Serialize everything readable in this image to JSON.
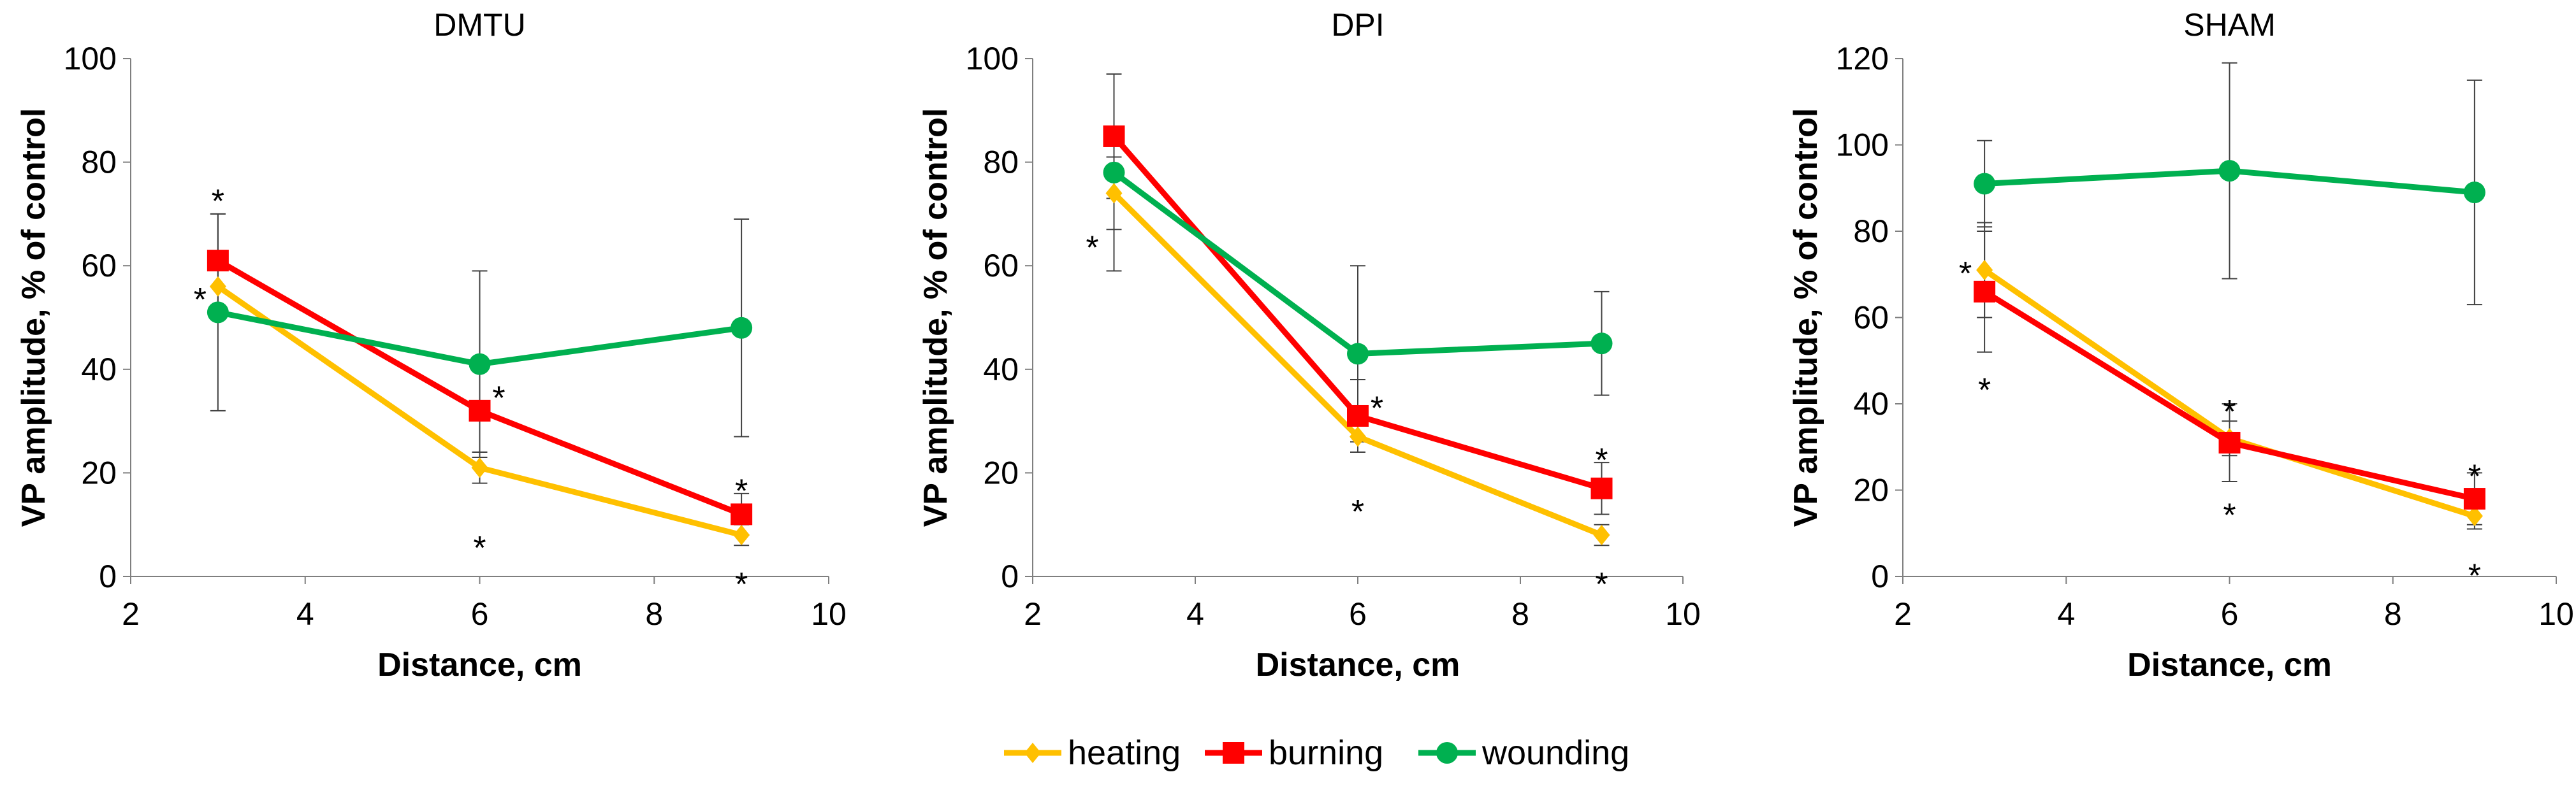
{
  "chart_data": [
    {
      "type": "line",
      "title": "DMTU",
      "xlabel": "Distance, cm",
      "ylabel": "VP amplitude, % of control",
      "xlim": [
        2,
        10
      ],
      "ylim": [
        0,
        100
      ],
      "x_ticks": [
        "2",
        "4",
        "6",
        "8",
        "10"
      ],
      "y_ticks": [
        "0",
        "20",
        "40",
        "60",
        "80",
        "100"
      ],
      "x": [
        3,
        6,
        9
      ],
      "series": [
        {
          "name": "heating",
          "color": "#FFC000",
          "marker": "diamond",
          "values": [
            56,
            21,
            8
          ],
          "errors": [
            6,
            3,
            2
          ]
        },
        {
          "name": "burning",
          "color": "#FF0000",
          "marker": "square",
          "values": [
            61,
            32,
            12
          ],
          "errors": [
            9,
            8,
            4
          ]
        },
        {
          "name": "wounding",
          "color": "#00B050",
          "marker": "circle",
          "values": [
            51,
            41,
            48
          ],
          "errors": [
            19,
            18,
            21
          ]
        }
      ],
      "annotations": [
        {
          "text": "*",
          "x": 3,
          "y": 74,
          "dx": 0
        },
        {
          "text": "*",
          "x": 3,
          "y": 55,
          "dx": -28
        },
        {
          "text": "*",
          "x": 6,
          "y": 36,
          "dx": 30
        },
        {
          "text": "*",
          "x": 6,
          "y": 7,
          "dx": 0
        },
        {
          "text": "*",
          "x": 9,
          "y": 18,
          "dx": 0
        },
        {
          "text": "*",
          "x": 9,
          "y": 0,
          "dx": 0
        }
      ]
    },
    {
      "type": "line",
      "title": "DPI",
      "xlabel": "Distance, cm",
      "ylabel": "VP amplitude, % of control",
      "xlim": [
        2,
        10
      ],
      "ylim": [
        0,
        100
      ],
      "x_ticks": [
        "2",
        "4",
        "6",
        "8",
        "10"
      ],
      "y_ticks": [
        "0",
        "20",
        "40",
        "60",
        "80",
        "100"
      ],
      "x": [
        3,
        6,
        9
      ],
      "series": [
        {
          "name": "heating",
          "color": "#FFC000",
          "marker": "diamond",
          "values": [
            74,
            27,
            8
          ],
          "errors": [
            7,
            3,
            2
          ]
        },
        {
          "name": "burning",
          "color": "#FF0000",
          "marker": "square",
          "values": [
            85,
            31,
            17
          ],
          "errors": [
            12,
            7,
            5
          ]
        },
        {
          "name": "wounding",
          "color": "#00B050",
          "marker": "circle",
          "values": [
            78,
            43,
            45
          ],
          "errors": [
            19,
            17,
            10
          ]
        }
      ],
      "annotations": [
        {
          "text": "*",
          "x": 3,
          "y": 65,
          "dx": -34
        },
        {
          "text": "*",
          "x": 6,
          "y": 34,
          "dx": 30
        },
        {
          "text": "*",
          "x": 6,
          "y": 14,
          "dx": 0
        },
        {
          "text": "*",
          "x": 9,
          "y": 24,
          "dx": 0
        },
        {
          "text": "*",
          "x": 9,
          "y": 0,
          "dx": 0
        }
      ]
    },
    {
      "type": "line",
      "title": "SHAM",
      "xlabel": "Distance, cm",
      "ylabel": "VP amplitude, % of control",
      "xlim": [
        2,
        10
      ],
      "ylim": [
        0,
        120
      ],
      "x_ticks": [
        "2",
        "4",
        "6",
        "8",
        "10"
      ],
      "y_ticks": [
        "0",
        "20",
        "40",
        "60",
        "80",
        "100",
        "120"
      ],
      "x": [
        3,
        6,
        9
      ],
      "series": [
        {
          "name": "heating",
          "color": "#FFC000",
          "marker": "diamond",
          "values": [
            71,
            32,
            14
          ],
          "errors": [
            11,
            4,
            3
          ]
        },
        {
          "name": "burning",
          "color": "#FF0000",
          "marker": "square",
          "values": [
            66,
            31,
            18
          ],
          "errors": [
            14,
            9,
            6
          ]
        },
        {
          "name": "wounding",
          "color": "#00B050",
          "marker": "circle",
          "values": [
            91,
            94,
            89
          ],
          "errors": [
            10,
            25,
            26
          ]
        }
      ],
      "annotations": [
        {
          "text": "*",
          "x": 3,
          "y": 72,
          "dx": -30
        },
        {
          "text": "*",
          "x": 3,
          "y": 45,
          "dx": 0
        },
        {
          "text": "*",
          "x": 6,
          "y": 40,
          "dx": 0
        },
        {
          "text": "*",
          "x": 6,
          "y": 16,
          "dx": 0
        },
        {
          "text": "*",
          "x": 9,
          "y": 25,
          "dx": 0
        },
        {
          "text": "*",
          "x": 9,
          "y": 2,
          "dx": 0
        }
      ]
    }
  ],
  "legend": {
    "position": "bottom-center",
    "items": [
      {
        "label": "heating",
        "color": "#FFC000",
        "marker": "diamond"
      },
      {
        "label": "burning",
        "color": "#FF0000",
        "marker": "square"
      },
      {
        "label": "wounding",
        "color": "#00B050",
        "marker": "circle"
      }
    ]
  }
}
